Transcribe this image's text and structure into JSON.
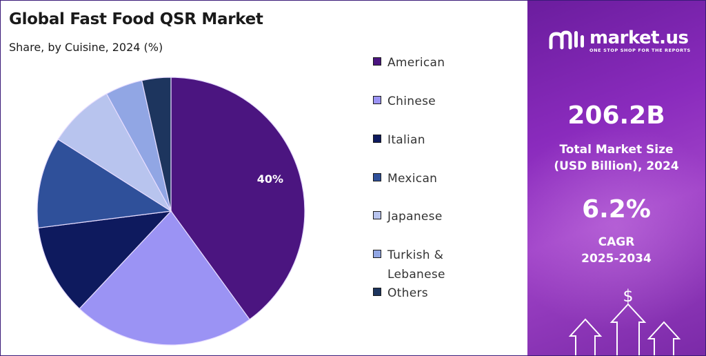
{
  "chart_data": {
    "type": "pie",
    "title": "Global Fast Food QSR Market",
    "subtitle": "Share, by Cuisine, 2024 (%)",
    "slices": [
      {
        "label": "American",
        "value": 40,
        "color": "#4b1580",
        "data_label": "40%"
      },
      {
        "label": "Chinese",
        "value": 22,
        "color": "#9b93f4",
        "data_label": ""
      },
      {
        "label": "Italian",
        "value": 11,
        "color": "#0e1a5e",
        "data_label": ""
      },
      {
        "label": "Mexican",
        "value": 11,
        "color": "#2f509a",
        "data_label": ""
      },
      {
        "label": "Japanese",
        "value": 8,
        "color": "#b8c4ee",
        "data_label": ""
      },
      {
        "label": "Turkish & Lebanese",
        "value": 4.5,
        "color": "#91a6e4",
        "data_label": ""
      },
      {
        "label": "Others",
        "value": 3.5,
        "color": "#1d355e",
        "data_label": ""
      }
    ],
    "start_angle": 0,
    "direction": "clockwise",
    "legend": "right"
  },
  "legend_items": [
    {
      "label_lines": [
        "American"
      ]
    },
    {
      "label_lines": [
        "Chinese"
      ]
    },
    {
      "label_lines": [
        "Italian"
      ]
    },
    {
      "label_lines": [
        "Mexican"
      ]
    },
    {
      "label_lines": [
        "Japanese"
      ]
    },
    {
      "label_lines": [
        "Turkish &",
        "Lebanese"
      ]
    },
    {
      "label_lines": [
        "Others"
      ]
    }
  ],
  "panel": {
    "logo_name": "market.us",
    "logo_tagline": "ONE STOP SHOP FOR THE REPORTS",
    "market_size_value": "206.2B",
    "market_size_label_1": "Total Market Size",
    "market_size_label_2": "(USD Billion), 2024",
    "cagr_value": "6.2%",
    "cagr_label_1": "CAGR",
    "cagr_label_2": "2025-2034",
    "dollar_symbol": "$"
  },
  "colors": {
    "panel_bg": "#8a2bbd",
    "pie_stroke": "#e6dcff"
  }
}
